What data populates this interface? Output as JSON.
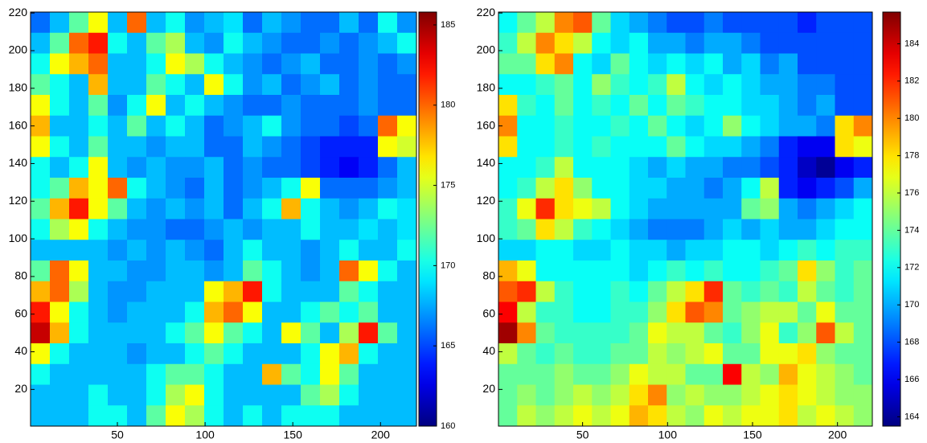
{
  "chart_data": [
    {
      "type": "heatmap",
      "colormap": "jet",
      "x": [
        6,
        17,
        28,
        39,
        50,
        61,
        72,
        83,
        94,
        105,
        116,
        127,
        138,
        149,
        160,
        171,
        182,
        193,
        204,
        215
      ],
      "y": [
        215,
        204,
        193,
        182,
        171,
        160,
        149,
        138,
        127,
        116,
        105,
        94,
        83,
        72,
        61,
        50,
        39,
        28,
        17,
        6
      ],
      "z": [
        [
          166,
          168,
          172,
          176,
          168,
          180,
          168,
          170,
          167,
          168,
          169,
          166,
          168,
          167,
          166,
          166,
          168,
          166,
          170,
          167
        ],
        [
          168,
          172,
          180,
          182,
          170,
          168,
          172,
          174,
          168,
          167,
          170,
          168,
          167,
          166,
          166,
          167,
          166,
          167,
          168,
          170
        ],
        [
          170,
          176,
          178,
          180,
          168,
          168,
          170,
          176,
          174,
          170,
          168,
          167,
          166,
          167,
          168,
          166,
          166,
          167,
          166,
          167
        ],
        [
          172,
          170,
          168,
          178,
          168,
          168,
          172,
          170,
          168,
          176,
          170,
          167,
          168,
          166,
          167,
          168,
          166,
          167,
          166,
          166
        ],
        [
          176,
          170,
          168,
          172,
          167,
          170,
          176,
          168,
          170,
          168,
          167,
          166,
          166,
          167,
          166,
          166,
          166,
          167,
          166,
          166
        ],
        [
          178,
          168,
          168,
          170,
          168,
          172,
          168,
          170,
          168,
          166,
          167,
          168,
          170,
          167,
          166,
          166,
          165,
          166,
          180,
          176
        ],
        [
          176,
          170,
          168,
          172,
          168,
          168,
          167,
          168,
          168,
          166,
          166,
          168,
          167,
          166,
          165,
          164,
          164,
          164,
          176,
          175
        ],
        [
          170,
          168,
          170,
          176,
          168,
          167,
          168,
          167,
          167,
          168,
          166,
          167,
          166,
          166,
          165,
          164,
          163,
          164,
          166,
          168
        ],
        [
          170,
          172,
          178,
          176,
          180,
          170,
          168,
          167,
          166,
          168,
          166,
          167,
          168,
          170,
          176,
          166,
          166,
          166,
          167,
          168
        ],
        [
          172,
          178,
          182,
          176,
          172,
          168,
          167,
          168,
          167,
          168,
          166,
          168,
          170,
          178,
          170,
          168,
          167,
          168,
          170,
          169
        ],
        [
          170,
          174,
          176,
          170,
          168,
          167,
          167,
          166,
          166,
          167,
          168,
          167,
          168,
          168,
          170,
          168,
          168,
          169,
          168,
          169
        ],
        [
          168,
          168,
          168,
          168,
          167,
          168,
          167,
          168,
          167,
          166,
          168,
          170,
          168,
          168,
          167,
          168,
          170,
          168,
          168,
          170
        ],
        [
          172,
          180,
          176,
          168,
          168,
          167,
          167,
          168,
          168,
          167,
          168,
          172,
          170,
          168,
          167,
          168,
          180,
          176,
          170,
          168
        ],
        [
          178,
          180,
          174,
          168,
          167,
          167,
          168,
          168,
          168,
          176,
          178,
          182,
          170,
          168,
          168,
          168,
          172,
          170,
          168,
          168
        ],
        [
          182,
          176,
          170,
          168,
          167,
          168,
          168,
          168,
          170,
          178,
          180,
          176,
          168,
          168,
          170,
          172,
          170,
          172,
          168,
          168
        ],
        [
          184,
          178,
          170,
          168,
          168,
          168,
          168,
          170,
          172,
          176,
          172,
          170,
          168,
          176,
          172,
          168,
          174,
          182,
          172,
          168
        ],
        [
          176,
          170,
          168,
          168,
          168,
          167,
          168,
          168,
          170,
          172,
          170,
          168,
          168,
          168,
          170,
          176,
          178,
          170,
          168,
          168
        ],
        [
          170,
          168,
          168,
          168,
          168,
          168,
          170,
          172,
          172,
          170,
          168,
          168,
          178,
          172,
          170,
          176,
          172,
          168,
          168,
          168
        ],
        [
          168,
          168,
          168,
          170,
          168,
          168,
          170,
          174,
          176,
          170,
          168,
          168,
          168,
          168,
          172,
          174,
          170,
          168,
          168,
          168
        ],
        [
          168,
          168,
          168,
          170,
          170,
          168,
          172,
          176,
          174,
          170,
          168,
          170,
          168,
          170,
          170,
          170,
          168,
          168,
          168,
          168
        ]
      ],
      "xlim": [
        0.5,
        220.5
      ],
      "ylim": [
        0.5,
        220.5
      ],
      "xticks": [
        50,
        100,
        150,
        200
      ],
      "yticks": [
        20,
        40,
        60,
        80,
        100,
        120,
        140,
        160,
        180,
        200,
        220
      ],
      "clim": [
        160,
        185.8
      ],
      "cticks": [
        160,
        165,
        170,
        175,
        180,
        185
      ]
    },
    {
      "type": "heatmap",
      "colormap": "jet",
      "x": [
        6,
        17,
        28,
        39,
        50,
        61,
        72,
        83,
        94,
        105,
        116,
        127,
        138,
        149,
        160,
        171,
        182,
        193,
        204,
        215
      ],
      "y": [
        215,
        204,
        193,
        182,
        171,
        160,
        149,
        138,
        127,
        116,
        105,
        94,
        83,
        72,
        61,
        50,
        39,
        28,
        17,
        6
      ],
      "z": [
        [
          172,
          174,
          176,
          180,
          181,
          174,
          171,
          170,
          169,
          168,
          168,
          169,
          168,
          168,
          168,
          168,
          167,
          168,
          168,
          168
        ],
        [
          173,
          176,
          180,
          178,
          176,
          172,
          171,
          172,
          170,
          170,
          169,
          170,
          170,
          169,
          168,
          168,
          168,
          168,
          168,
          168
        ],
        [
          174,
          174,
          178,
          180,
          172,
          171,
          174,
          172,
          171,
          172,
          171,
          172,
          170,
          171,
          169,
          170,
          168,
          168,
          168,
          168
        ],
        [
          172,
          172,
          173,
          174,
          172,
          175,
          173,
          172,
          173,
          176,
          172,
          171,
          172,
          171,
          170,
          170,
          169,
          169,
          168,
          168
        ],
        [
          178,
          173,
          172,
          174,
          172,
          173,
          172,
          174,
          172,
          174,
          173,
          172,
          172,
          171,
          171,
          170,
          169,
          170,
          168,
          168
        ],
        [
          180,
          172,
          172,
          173,
          172,
          172,
          173,
          172,
          174,
          172,
          171,
          172,
          175,
          172,
          171,
          170,
          170,
          169,
          178,
          180
        ],
        [
          178,
          172,
          172,
          173,
          172,
          173,
          172,
          172,
          172,
          174,
          172,
          171,
          171,
          170,
          169,
          167,
          166,
          166,
          178,
          177
        ],
        [
          172,
          172,
          173,
          176,
          172,
          172,
          172,
          171,
          170,
          171,
          170,
          170,
          169,
          169,
          168,
          167,
          165,
          164,
          166,
          167
        ],
        [
          172,
          173,
          176,
          178,
          175,
          172,
          172,
          171,
          171,
          170,
          170,
          169,
          170,
          172,
          176,
          167,
          166,
          167,
          168,
          170
        ],
        [
          173,
          177,
          182,
          178,
          177,
          176,
          172,
          171,
          170,
          170,
          170,
          170,
          170,
          174,
          175,
          170,
          169,
          170,
          171,
          172
        ],
        [
          173,
          174,
          178,
          176,
          173,
          172,
          171,
          170,
          169,
          169,
          169,
          170,
          171,
          170,
          171,
          170,
          170,
          171,
          172,
          172
        ],
        [
          171,
          171,
          172,
          172,
          171,
          171,
          172,
          171,
          171,
          170,
          171,
          171,
          172,
          172,
          171,
          172,
          173,
          172,
          173,
          173
        ],
        [
          179,
          177,
          172,
          172,
          172,
          172,
          172,
          171,
          172,
          173,
          172,
          173,
          172,
          172,
          173,
          174,
          178,
          175,
          173,
          174
        ],
        [
          181,
          182,
          176,
          173,
          172,
          172,
          173,
          172,
          174,
          176,
          178,
          182,
          174,
          173,
          174,
          173,
          176,
          174,
          173,
          174
        ],
        [
          183,
          176,
          173,
          173,
          172,
          172,
          173,
          173,
          175,
          178,
          181,
          180,
          174,
          175,
          176,
          176,
          174,
          177,
          174,
          174
        ],
        [
          185,
          180,
          174,
          173,
          173,
          173,
          173,
          174,
          177,
          176,
          176,
          174,
          173,
          175,
          177,
          173,
          175,
          181,
          176,
          174
        ],
        [
          176,
          174,
          173,
          174,
          173,
          173,
          174,
          174,
          176,
          175,
          176,
          177,
          174,
          174,
          177,
          177,
          178,
          175,
          174,
          174
        ],
        [
          174,
          174,
          174,
          175,
          174,
          174,
          175,
          177,
          176,
          176,
          174,
          174,
          183,
          176,
          175,
          179,
          177,
          176,
          175,
          174
        ],
        [
          174,
          175,
          174,
          175,
          176,
          175,
          176,
          178,
          180,
          175,
          176,
          175,
          175,
          176,
          177,
          178,
          177,
          176,
          175,
          175
        ],
        [
          174,
          176,
          175,
          176,
          177,
          176,
          177,
          179,
          178,
          176,
          175,
          177,
          176,
          177,
          177,
          178,
          176,
          177,
          176,
          175
        ]
      ],
      "xlim": [
        0.5,
        220.5
      ],
      "ylim": [
        0.5,
        220.5
      ],
      "xticks": [
        50,
        100,
        150,
        200
      ],
      "yticks": [
        20,
        40,
        60,
        80,
        100,
        120,
        140,
        160,
        180,
        200,
        220
      ],
      "clim": [
        163.5,
        185.7
      ],
      "cticks": [
        164,
        166,
        168,
        170,
        172,
        174,
        176,
        178,
        180,
        182,
        184
      ]
    }
  ]
}
